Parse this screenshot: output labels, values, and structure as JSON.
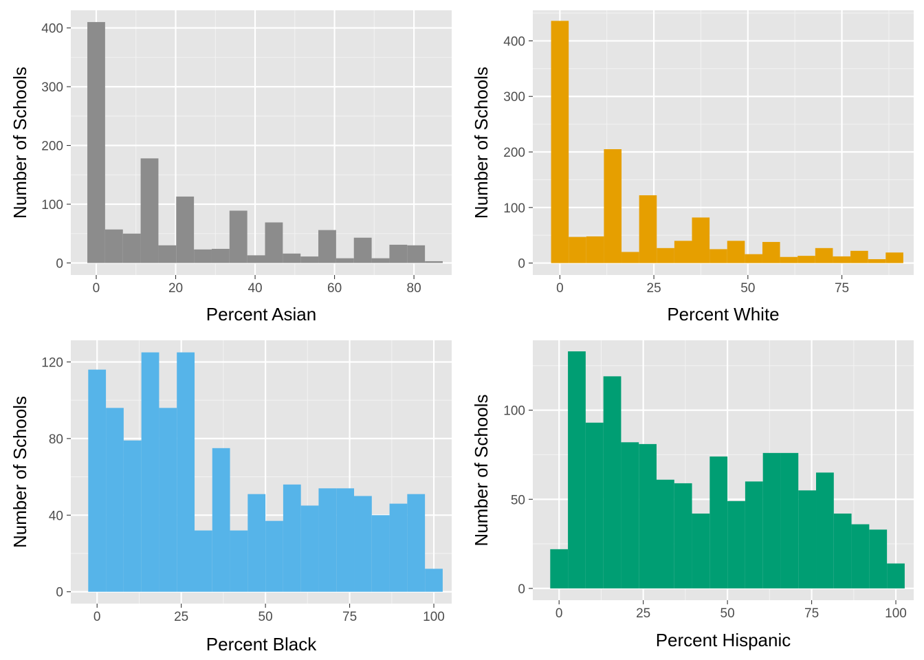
{
  "chart_data": [
    {
      "type": "bar",
      "subtype": "histogram",
      "xlabel": "Percent Asian",
      "ylabel": "Number of Schools",
      "fill": "#8C8C8C",
      "panel_background": "#E5E5E5",
      "grid": true,
      "xlim": [
        -6.4,
        89.5
      ],
      "ylim": [
        -20.5,
        430
      ],
      "xticks": [
        0,
        20,
        40,
        60,
        80
      ],
      "yticks": [
        0,
        100,
        200,
        300,
        400
      ],
      "bin_width": 4.474,
      "bin_start": -2.237,
      "counts": [
        410,
        57,
        50,
        178,
        30,
        113,
        23,
        24,
        89,
        13,
        69,
        16,
        11,
        56,
        8,
        43,
        8,
        31,
        30,
        3
      ]
    },
    {
      "type": "bar",
      "subtype": "histogram",
      "xlabel": "Percent White",
      "ylabel": "Number of Schools",
      "fill": "#E69F00",
      "panel_background": "#E5E5E5",
      "grid": true,
      "xlim": [
        -7.2,
        94.1
      ],
      "ylim": [
        -21.5,
        455
      ],
      "xticks": [
        0,
        25,
        50,
        75
      ],
      "yticks": [
        0,
        100,
        200,
        300,
        400
      ],
      "bin_width": 4.684,
      "bin_start": -2.342,
      "counts": [
        436,
        47,
        48,
        205,
        20,
        122,
        27,
        40,
        82,
        25,
        40,
        16,
        38,
        11,
        13,
        27,
        12,
        22,
        7,
        19
      ]
    },
    {
      "type": "bar",
      "subtype": "histogram",
      "xlabel": "Percent Black",
      "ylabel": "Number of Schools",
      "fill": "#56B4E9",
      "panel_background": "#E5E5E5",
      "grid": true,
      "xlim": [
        -7.8,
        105.3
      ],
      "ylim": [
        -6.2,
        131.3
      ],
      "xticks": [
        0,
        25,
        50,
        75,
        100
      ],
      "yticks": [
        0,
        40,
        80,
        120
      ],
      "bin_width": 5.263,
      "bin_start": -2.632,
      "counts": [
        116,
        96,
        79,
        125,
        96,
        125,
        32,
        75,
        32,
        51,
        37,
        56,
        45,
        54,
        54,
        50,
        40,
        46,
        51,
        12
      ]
    },
    {
      "type": "bar",
      "subtype": "histogram",
      "xlabel": "Percent Hispanic",
      "ylabel": "Number of Schools",
      "fill": "#009E73",
      "panel_background": "#E5E5E5",
      "grid": true,
      "xlim": [
        -7.8,
        105.3
      ],
      "ylim": [
        -6.6,
        139.2
      ],
      "xticks": [
        0,
        25,
        50,
        75,
        100
      ],
      "yticks": [
        0,
        50,
        100
      ],
      "bin_width": 5.263,
      "bin_start": -2.632,
      "counts": [
        22,
        133,
        93,
        119,
        82,
        81,
        61,
        59,
        42,
        74,
        49,
        60,
        76,
        76,
        55,
        65,
        42,
        36,
        33,
        14
      ]
    }
  ]
}
